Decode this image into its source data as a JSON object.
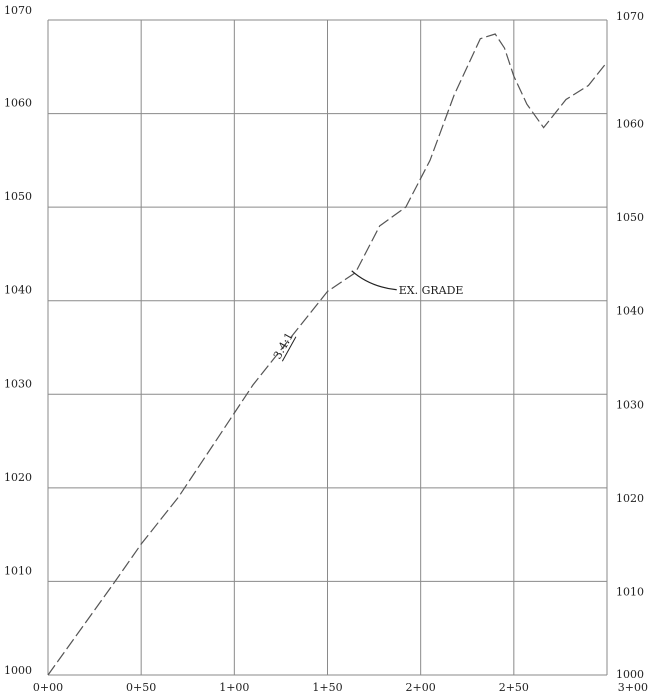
{
  "chart_data": {
    "type": "line",
    "title": "",
    "xlabel": "",
    "ylabel": "",
    "x_ticks": [
      "0+00",
      "0+50",
      "1+00",
      "1+50",
      "2+00",
      "2+50",
      "3+00"
    ],
    "x_tick_values": [
      0,
      50,
      100,
      150,
      200,
      250,
      300
    ],
    "y_ticks": [
      "1000",
      "1010",
      "1020",
      "1030",
      "1040",
      "1050",
      "1060",
      "1070"
    ],
    "y_tick_values": [
      1000,
      1010,
      1020,
      1030,
      1040,
      1050,
      1060,
      1070
    ],
    "xlim": [
      0,
      300
    ],
    "ylim": [
      1000,
      1070
    ],
    "grid": true,
    "line_style": "dashed",
    "series": [
      {
        "name": "",
        "x": [
          0,
          36,
          50,
          70,
          90,
          110,
          130,
          150,
          165,
          178,
          192,
          205,
          218,
          232,
          240,
          245,
          250,
          257,
          266,
          270,
          278,
          290,
          300
        ],
        "y": [
          1000,
          1010,
          1014,
          1019,
          1025,
          1031,
          1036,
          1041,
          1043,
          1048,
          1050,
          1055,
          1062,
          1068,
          1068.5,
          1067,
          1064,
          1061,
          1058.5,
          1059.5,
          1061.5,
          1063,
          1065.5
        ]
      }
    ],
    "annotations": [
      {
        "text": "EX. GRADE",
        "x": 172,
        "y": 1041
      },
      {
        "text": "3.4:1",
        "x": 130,
        "y": 1036
      }
    ]
  }
}
